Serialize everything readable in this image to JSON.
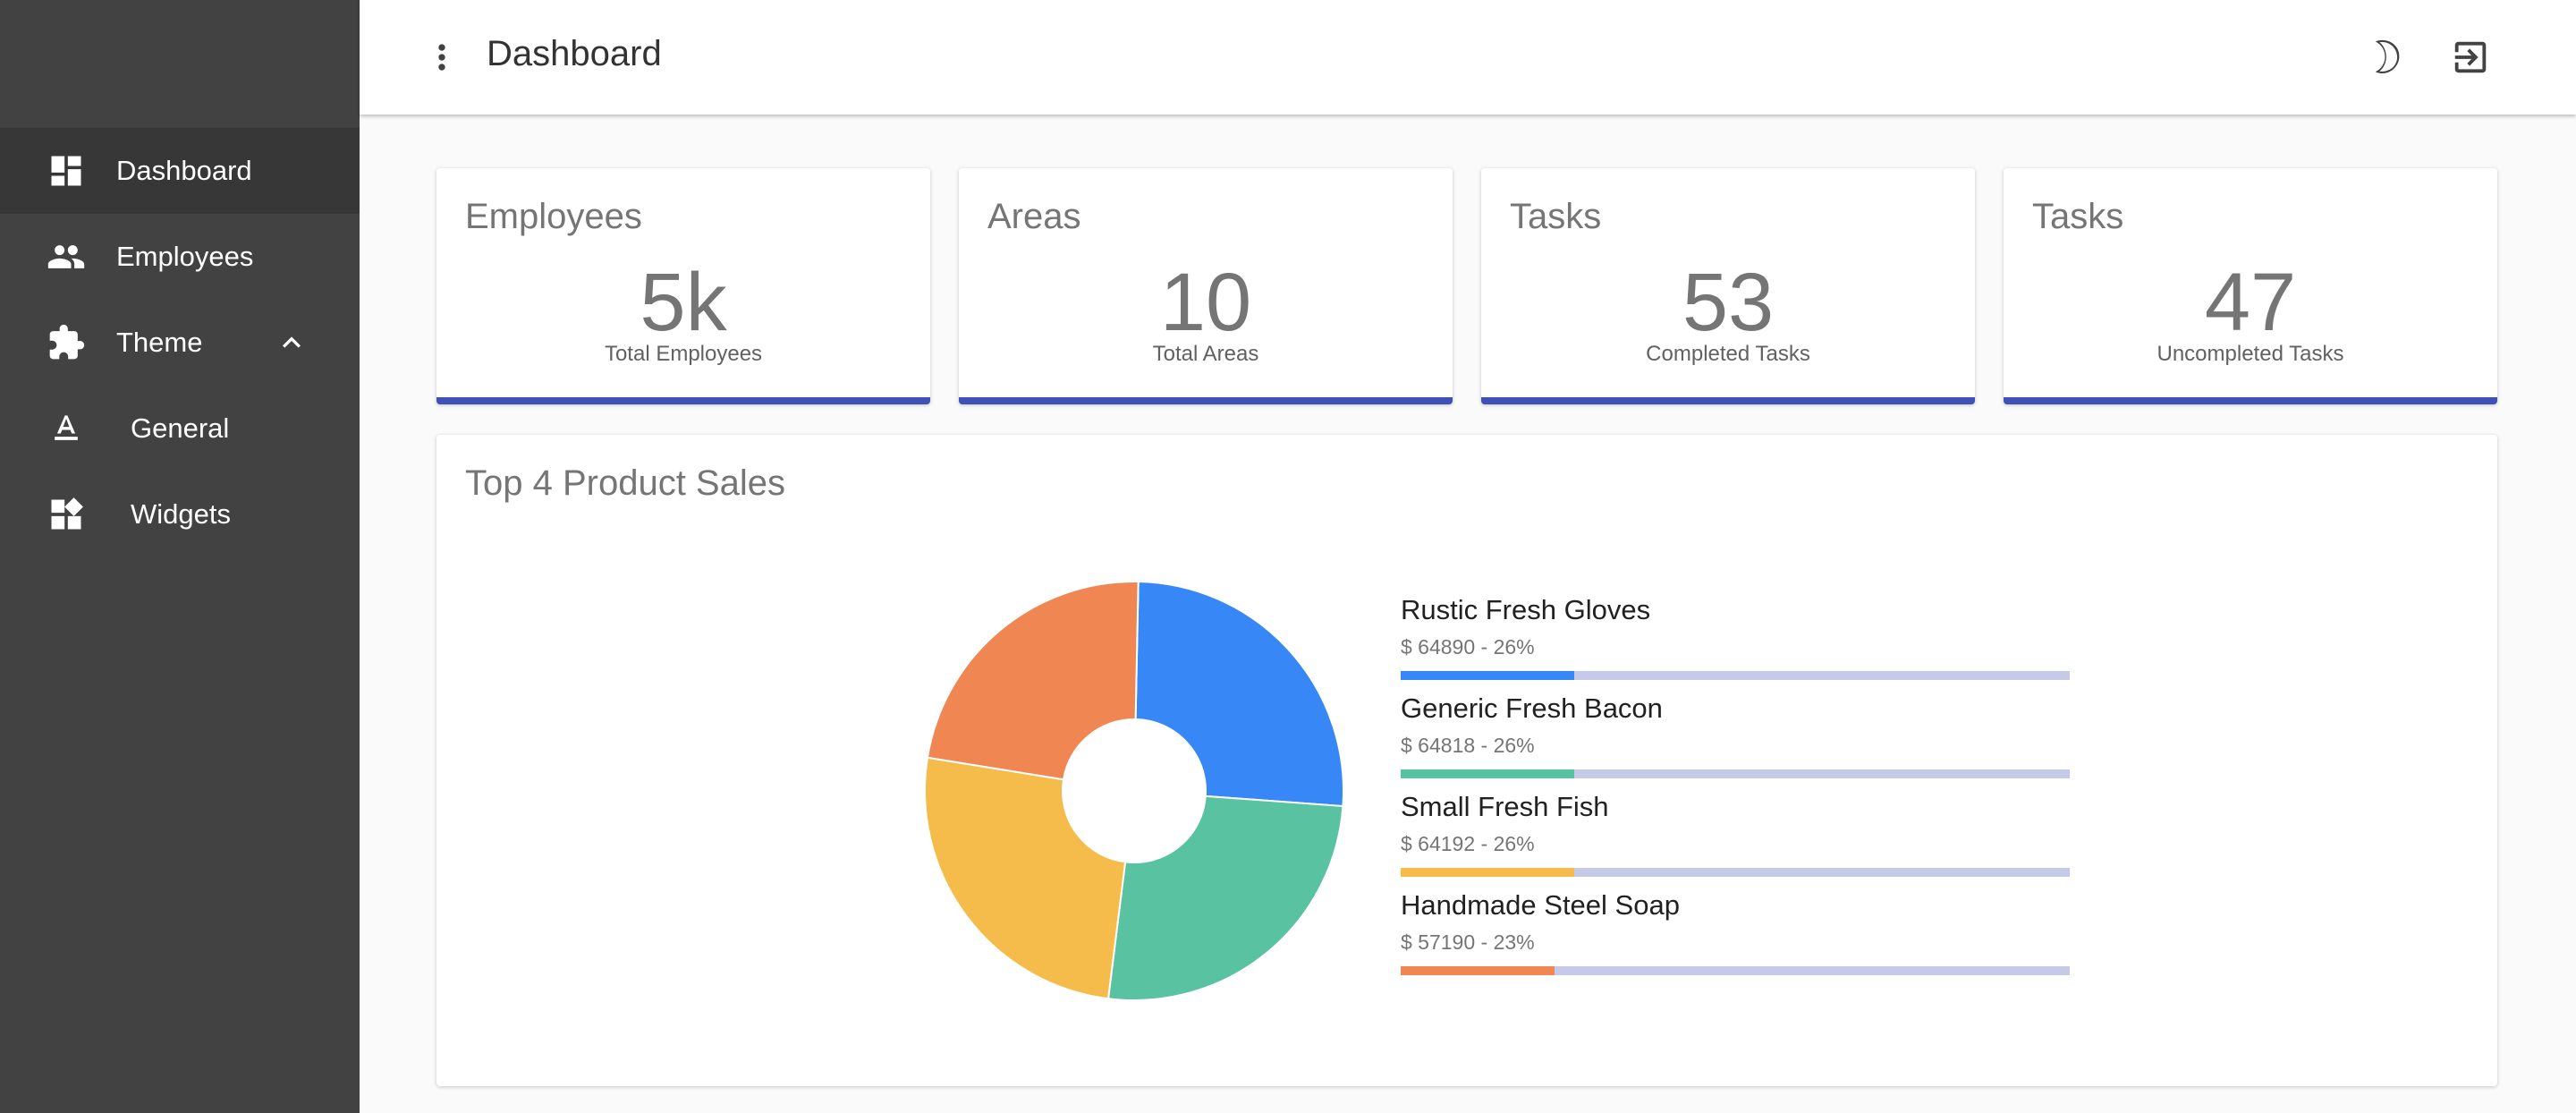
{
  "sidebar": {
    "items": [
      {
        "label": "Dashboard",
        "icon": "dashboard-icon"
      },
      {
        "label": "Employees",
        "icon": "people-icon"
      },
      {
        "label": "Theme",
        "icon": "puzzle-icon"
      },
      {
        "label": "General",
        "icon": "text-format-icon"
      },
      {
        "label": "Widgets",
        "icon": "widgets-icon"
      }
    ]
  },
  "header": {
    "title": "Dashboard"
  },
  "cards": [
    {
      "title": "Employees",
      "value": "5k",
      "subtitle": "Total Employees"
    },
    {
      "title": "Areas",
      "value": "10",
      "subtitle": "Total Areas"
    },
    {
      "title": "Tasks",
      "value": "53",
      "subtitle": "Completed Tasks"
    },
    {
      "title": "Tasks",
      "value": "47",
      "subtitle": "Uncompleted Tasks"
    }
  ],
  "sales": {
    "title": "Top 4 Product Sales",
    "items": [
      {
        "name": "Rustic Fresh Gloves",
        "detail": "$ 64890 - 26%"
      },
      {
        "name": "Generic Fresh Bacon",
        "detail": "$ 64818 - 26%"
      },
      {
        "name": "Small Fresh Fish",
        "detail": "$ 64192 - 26%"
      },
      {
        "name": "Handmade Steel Soap",
        "detail": "$ 57190 - 23%"
      }
    ]
  },
  "chart_data": {
    "type": "pie",
    "title": "",
    "categories": [
      "Rustic Fresh Gloves",
      "Generic Fresh Bacon",
      "Small Fresh Fish",
      "Handmade Steel Soap"
    ],
    "values": [
      64890,
      64818,
      64192,
      57190
    ],
    "percent": [
      26,
      26,
      26,
      23
    ],
    "colors": [
      "#3788f6",
      "#58c2a1",
      "#f5bb4b",
      "#f08651"
    ],
    "track_color": "#c5cae9"
  },
  "colors": {
    "sidebar_bg": "#424242",
    "sidebar_active": "#373737",
    "accent": "#3f51b5"
  }
}
